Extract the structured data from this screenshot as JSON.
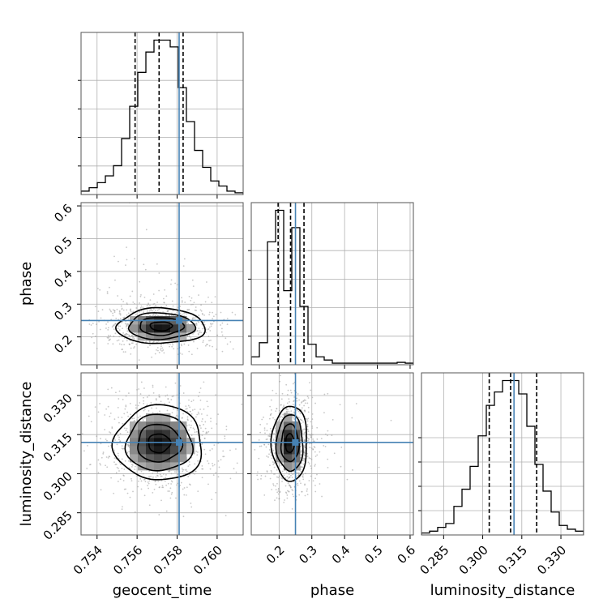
{
  "chart_data": {
    "type": "corner",
    "parameters": [
      "geocent_time",
      "phase",
      "luminosity_distance"
    ],
    "axis_labels": {
      "x": [
        "geocent_time",
        "phase",
        "luminosity_distance"
      ],
      "y": [
        "phase",
        "luminosity_distance"
      ]
    },
    "ranges": {
      "geocent_time": [
        0.7532,
        0.7613
      ],
      "phase": [
        0.115,
        0.61
      ],
      "luminosity_distance": [
        0.2765,
        0.3387
      ]
    },
    "ticks": {
      "geocent_time": [
        0.754,
        0.756,
        0.758,
        0.76
      ],
      "phase": [
        0.2,
        0.3,
        0.4,
        0.5,
        0.6
      ],
      "luminosity_distance": [
        0.285,
        0.3,
        0.315,
        0.33
      ]
    },
    "tick_labels": {
      "geocent_time": [
        "0.754",
        "0.756",
        "0.758",
        "0.760"
      ],
      "phase": [
        "0.2",
        "0.3",
        "0.4",
        "0.5",
        "0.6"
      ],
      "luminosity_distance": [
        "0.285",
        "0.300",
        "0.315",
        "0.330"
      ]
    },
    "truths": {
      "geocent_time": 0.7581,
      "phase": 0.25,
      "luminosity_distance": 0.312
    },
    "quantiles": {
      "geocent_time": [
        0.7559,
        0.7571,
        0.7583
      ],
      "phase": [
        0.197,
        0.235,
        0.276
      ],
      "luminosity_distance": [
        0.3025,
        0.3107,
        0.3207
      ]
    },
    "histograms": {
      "geocent_time": {
        "edges_range": [
          0.7532,
          0.7613
        ],
        "bins": 20,
        "counts": [
          0.02,
          0.04,
          0.07,
          0.11,
          0.17,
          0.33,
          0.52,
          0.72,
          0.84,
          0.91,
          0.91,
          0.87,
          0.63,
          0.43,
          0.26,
          0.16,
          0.08,
          0.05,
          0.02,
          0.01
        ]
      },
      "phase": {
        "edges_range": [
          0.115,
          0.61
        ],
        "bins": 20,
        "counts": [
          0.05,
          0.14,
          0.78,
          0.98,
          0.47,
          0.87,
          0.37,
          0.13,
          0.05,
          0.03,
          0.01,
          0.01,
          0.01,
          0.01,
          0.01,
          0.01,
          0.01,
          0.01,
          0.015,
          0.01
        ]
      },
      "luminosity_distance": {
        "edges_range": [
          0.2765,
          0.3387
        ],
        "bins": 20,
        "counts": [
          0.01,
          0.02,
          0.04,
          0.06,
          0.15,
          0.24,
          0.36,
          0.52,
          0.68,
          0.75,
          0.81,
          0.81,
          0.74,
          0.57,
          0.37,
          0.23,
          0.12,
          0.05,
          0.03,
          0.02
        ]
      }
    },
    "pair_posteriors": [
      {
        "x": "geocent_time",
        "y": "phase",
        "center": [
          0.7572,
          0.2325
        ],
        "sigma": [
          0.0011,
          0.027
        ]
      },
      {
        "x": "geocent_time",
        "y": "luminosity_distance",
        "center": [
          0.7571,
          0.3117
        ],
        "sigma": [
          0.0011,
          0.0072
        ]
      },
      {
        "x": "phase",
        "y": "luminosity_distance",
        "center": [
          0.233,
          0.3117
        ],
        "sigma": [
          0.027,
          0.0072
        ]
      }
    ],
    "contour_levels": [
      0.5,
      1.0,
      1.5,
      2.0
    ],
    "grid": true,
    "colors": {
      "hist": "#000000",
      "truth": "#4682b4",
      "points": "#9a9a9a",
      "grid": "#b0b0b0"
    }
  }
}
